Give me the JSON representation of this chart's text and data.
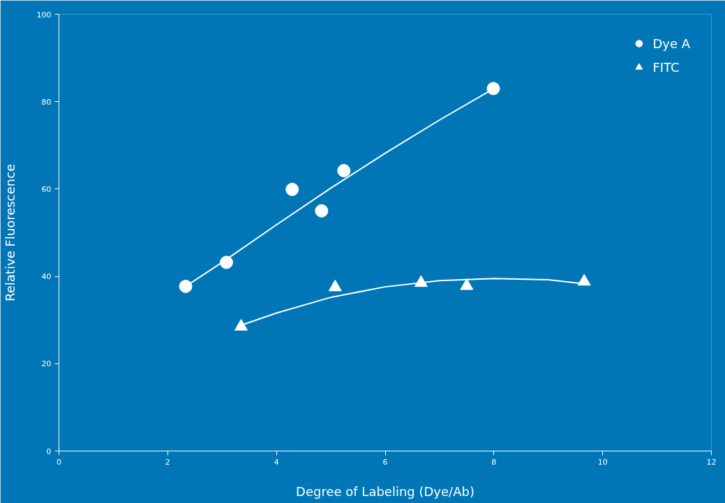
{
  "chart_data": {
    "type": "scatter",
    "xlabel": "Degree of Labeling (Dye/Ab)",
    "ylabel": "Relative Fluorescence",
    "xlim": [
      0,
      12
    ],
    "ylim": [
      0,
      100
    ],
    "xticks": [
      0,
      2,
      4,
      6,
      8,
      10,
      12
    ],
    "yticks": [
      0,
      20,
      40,
      60,
      80,
      100
    ],
    "grid": false,
    "legend": "top right",
    "series": [
      {
        "name": "Dye A",
        "marker": "circle",
        "color": "#ffffff",
        "x": [
          2.33,
          3.08,
          4.29,
          4.83,
          5.24,
          7.99
        ],
        "values": [
          37.7,
          43.2,
          59.9,
          55.0,
          64.2,
          83.0
        ]
      },
      {
        "name": "FITC",
        "marker": "triangle",
        "color": "#ffffff",
        "x": [
          3.35,
          5.08,
          6.66,
          7.5,
          9.66
        ],
        "values": [
          28.5,
          37.5,
          38.5,
          37.8,
          38.8
        ]
      },
      {
        "type": "line",
        "color": "#ffffff",
        "x": [
          2.33,
          3.0,
          4.0,
          5.0,
          6.0,
          7.0,
          8.0
        ],
        "values": [
          37.7,
          43.2,
          51.8,
          60.2,
          68.2,
          75.8,
          83.0
        ]
      },
      {
        "type": "line",
        "color": "#ffffff",
        "x": [
          3.35,
          4.0,
          5.0,
          6.0,
          7.0,
          8.0,
          9.0,
          9.66
        ],
        "values": [
          28.8,
          31.6,
          35.2,
          37.6,
          39.0,
          39.5,
          39.2,
          38.3
        ]
      }
    ]
  }
}
